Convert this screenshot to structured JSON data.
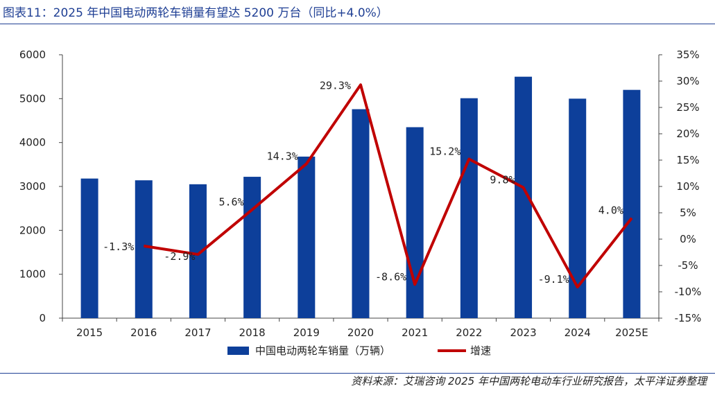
{
  "title": "图表11：2025 年中国电动两轮车销量有望达 5200 万台（同比+4.0%）",
  "source": "资料来源：艾瑞咨询 2025 年中国两轮电动车行业研究报告，太平洋证券整理",
  "colors": {
    "bar": "#0d3f9a",
    "line": "#c00000",
    "title": "#1f3f94"
  },
  "chart_data": {
    "type": "bar",
    "categories": [
      "2015",
      "2016",
      "2017",
      "2018",
      "2019",
      "2020",
      "2021",
      "2022",
      "2023",
      "2024",
      "2025E"
    ],
    "series": [
      {
        "name": "中国电动两轮车销量（万辆）",
        "type": "bar",
        "axis": "left",
        "values": [
          3180,
          3140,
          3050,
          3220,
          3680,
          4760,
          4350,
          5010,
          5500,
          5000,
          5200
        ]
      },
      {
        "name": "增速",
        "type": "line",
        "axis": "right",
        "values": [
          null,
          -1.3,
          -2.9,
          5.6,
          14.3,
          29.3,
          -8.6,
          15.2,
          9.8,
          -9.1,
          4.0
        ],
        "labels": [
          "",
          "-1.3%",
          "-2.9%",
          "5.6%",
          "14.3%",
          "29.3%",
          "-8.6%",
          "15.2%",
          "9.8%",
          "-9.1%",
          "4.0%"
        ]
      }
    ],
    "y_left": {
      "ylim": [
        0,
        6000
      ],
      "ticks": [
        "0",
        "1000",
        "2000",
        "3000",
        "4000",
        "5000",
        "6000"
      ]
    },
    "y_right": {
      "ylim": [
        -15,
        35
      ],
      "ticks": [
        "-15%",
        "-10%",
        "-5%",
        "0%",
        "5%",
        "10%",
        "15%",
        "20%",
        "25%",
        "30%",
        "35%"
      ]
    },
    "legend_position": "bottom",
    "grid": false
  }
}
